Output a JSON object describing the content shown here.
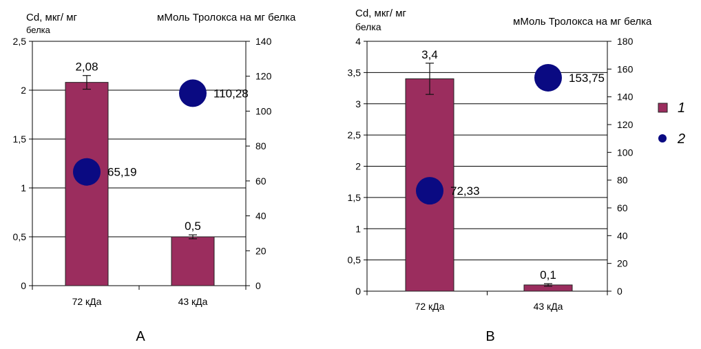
{
  "chart_data": [
    {
      "type": "bar",
      "panel_label": "А",
      "categories": [
        "72 кДа",
        "43 кДа"
      ],
      "ylabel_left_line1": "Cd, мкг/ мг",
      "ylabel_left_line2": "белка",
      "ylabel_right": "мМоль Тролокса на мг белка",
      "left_axis": {
        "ylim": [
          0,
          2.5
        ],
        "ticks": [
          "0",
          "0,5",
          "1",
          "1,5",
          "2",
          "2,5"
        ],
        "tick_values": [
          0,
          0.5,
          1,
          1.5,
          2,
          2.5
        ]
      },
      "right_axis": {
        "ylim": [
          0,
          140
        ],
        "ticks": [
          "0",
          "20",
          "40",
          "60",
          "80",
          "100",
          "120",
          "140"
        ],
        "tick_values": [
          0,
          20,
          40,
          60,
          80,
          100,
          120,
          140
        ]
      },
      "series": [
        {
          "name": "1",
          "kind": "bar",
          "axis": "left",
          "values": [
            2.08,
            0.5
          ],
          "labels": [
            "2,08",
            "0,5"
          ],
          "errors": [
            0.07,
            0.02
          ]
        },
        {
          "name": "2",
          "kind": "point",
          "axis": "right",
          "values": [
            65.19,
            110.28
          ],
          "labels": [
            "65,19",
            "110,28"
          ]
        }
      ],
      "grid": true
    },
    {
      "type": "bar",
      "panel_label": "В",
      "categories": [
        "72 кДа",
        "43 кДа"
      ],
      "ylabel_left_line1": "Cd, мкг/ мг",
      "ylabel_left_line2": "белка",
      "ylabel_right": "мМоль Тролокса на мг белка",
      "left_axis": {
        "ylim": [
          0,
          4
        ],
        "ticks": [
          "0",
          "0,5",
          "1",
          "1,5",
          "2",
          "2,5",
          "3",
          "3,5",
          "4"
        ],
        "tick_values": [
          0,
          0.5,
          1,
          1.5,
          2,
          2.5,
          3,
          3.5,
          4
        ]
      },
      "right_axis": {
        "ylim": [
          0,
          180
        ],
        "ticks": [
          "0",
          "20",
          "40",
          "60",
          "80",
          "100",
          "120",
          "140",
          "160",
          "180"
        ],
        "tick_values": [
          0,
          20,
          40,
          60,
          80,
          100,
          120,
          140,
          160,
          180
        ]
      },
      "series": [
        {
          "name": "1",
          "kind": "bar",
          "axis": "left",
          "values": [
            3.4,
            0.1
          ],
          "labels": [
            "3,4",
            "0,1"
          ],
          "errors": [
            0.25,
            0.02
          ]
        },
        {
          "name": "2",
          "kind": "point",
          "axis": "right",
          "values": [
            72.33,
            153.75
          ],
          "labels": [
            "72,33",
            "153,75"
          ]
        }
      ],
      "grid": true
    }
  ],
  "legend": {
    "placement": "right",
    "items": [
      {
        "label": "1",
        "marker": "square",
        "color": "#9B2D5E"
      },
      {
        "label": "2",
        "marker": "circle",
        "color": "#0A0A82"
      }
    ]
  },
  "colors": {
    "bar": "#9B2D5E",
    "point": "#0A0A82",
    "grid": "#000000"
  }
}
